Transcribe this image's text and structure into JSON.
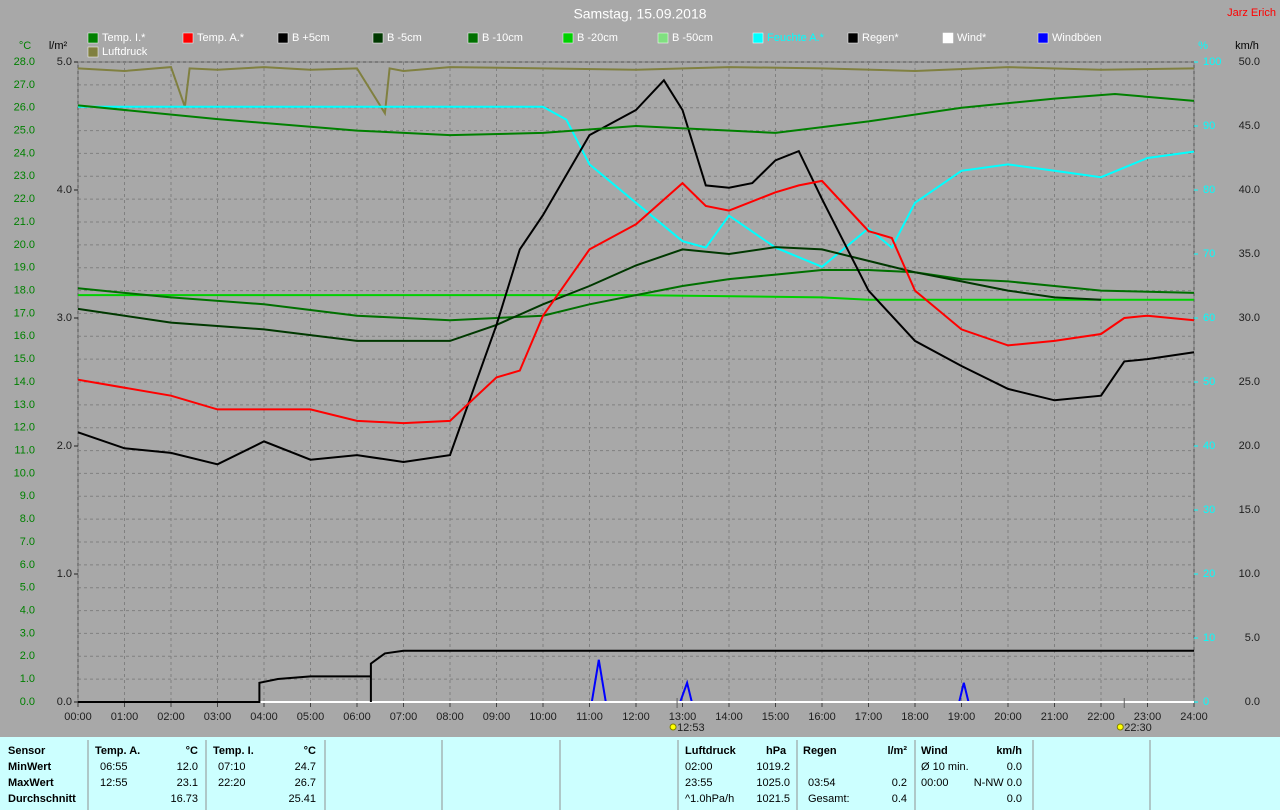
{
  "chart_data": {
    "type": "line",
    "title": "Samstag, 15.09.2018",
    "author": "Jarz Erich",
    "y_label": "°C",
    "y2_label": "l/m²",
    "y3_label": "%",
    "y4_label": "km/h",
    "xlim": [
      0,
      24
    ],
    "xticks": [
      {
        "value": 0,
        "label": "00:00"
      },
      {
        "value": 1,
        "label": "01:00"
      },
      {
        "value": 2,
        "label": "02:00"
      },
      {
        "value": 3,
        "label": "03:00"
      },
      {
        "value": 4,
        "label": "04:00"
      },
      {
        "value": 5,
        "label": "05:00"
      },
      {
        "value": 6,
        "label": "06:00"
      },
      {
        "value": 7,
        "label": "07:00"
      },
      {
        "value": 8,
        "label": "08:00"
      },
      {
        "value": 9,
        "label": "09:00"
      },
      {
        "value": 10,
        "label": "10:00"
      },
      {
        "value": 11,
        "label": "11:00"
      },
      {
        "value": 12,
        "label": "12:00"
      },
      {
        "value": 13,
        "label": "13:00"
      },
      {
        "value": 14,
        "label": "14:00"
      },
      {
        "value": 15,
        "label": "15:00"
      },
      {
        "value": 16,
        "label": "16:00"
      },
      {
        "value": 17,
        "label": "17:00"
      },
      {
        "value": 18,
        "label": "18:00"
      },
      {
        "value": 19,
        "label": "19:00"
      },
      {
        "value": 20,
        "label": "20:00"
      },
      {
        "value": 21,
        "label": "21:00"
      },
      {
        "value": 22,
        "label": "22:00"
      },
      {
        "value": 23,
        "label": "23:00"
      },
      {
        "value": 24,
        "label": "24:00"
      }
    ],
    "ylim": [
      0,
      28
    ],
    "yticks": [
      {
        "value": 0,
        "label": "0.0"
      },
      {
        "value": 1,
        "label": "1.0"
      },
      {
        "value": 2,
        "label": "2.0"
      },
      {
        "value": 3,
        "label": "3.0"
      },
      {
        "value": 4,
        "label": "4.0"
      },
      {
        "value": 5,
        "label": "5.0"
      },
      {
        "value": 6,
        "label": "6.0"
      },
      {
        "value": 7,
        "label": "7.0"
      },
      {
        "value": 8,
        "label": "8.0"
      },
      {
        "value": 9,
        "label": "9.0"
      },
      {
        "value": 10,
        "label": "10.0"
      },
      {
        "value": 11,
        "label": "11.0"
      },
      {
        "value": 12,
        "label": "12.0"
      },
      {
        "value": 13,
        "label": "13.0"
      },
      {
        "value": 14,
        "label": "14.0"
      },
      {
        "value": 15,
        "label": "15.0"
      },
      {
        "value": 16,
        "label": "16.0"
      },
      {
        "value": 17,
        "label": "17.0"
      },
      {
        "value": 18,
        "label": "18.0"
      },
      {
        "value": 19,
        "label": "19.0"
      },
      {
        "value": 20,
        "label": "20.0"
      },
      {
        "value": 21,
        "label": "21.0"
      },
      {
        "value": 22,
        "label": "22.0"
      },
      {
        "value": 23,
        "label": "23.0"
      },
      {
        "value": 24,
        "label": "24.0"
      },
      {
        "value": 25,
        "label": "25.0"
      },
      {
        "value": 26,
        "label": "26.0"
      },
      {
        "value": 27,
        "label": "27.0"
      },
      {
        "value": 28,
        "label": "28.0"
      }
    ],
    "y2lim": [
      0,
      5
    ],
    "y2ticks": [
      {
        "value": 0,
        "label": "0.0"
      },
      {
        "value": 1,
        "label": "1.0"
      },
      {
        "value": 2,
        "label": "2.0"
      },
      {
        "value": 3,
        "label": "3.0"
      },
      {
        "value": 4,
        "label": "4.0"
      },
      {
        "value": 5,
        "label": "5.0"
      }
    ],
    "y3lim": [
      0,
      100
    ],
    "y3ticks": [
      0,
      10,
      20,
      30,
      40,
      50,
      60,
      70,
      80,
      90,
      100
    ],
    "y4lim": [
      0,
      50
    ],
    "y4ticks": [
      {
        "value": 0,
        "label": "0.0"
      },
      {
        "value": 5,
        "label": "5.0"
      },
      {
        "value": 10,
        "label": "10.0"
      },
      {
        "value": 15,
        "label": "15.0"
      },
      {
        "value": 20,
        "label": "20.0"
      },
      {
        "value": 25,
        "label": "25.0"
      },
      {
        "value": 30,
        "label": "30.0"
      },
      {
        "value": 35,
        "label": "35.0"
      },
      {
        "value": 40,
        "label": "40.0"
      },
      {
        "value": 45,
        "label": "45.0"
      },
      {
        "value": 50,
        "label": "50.0"
      }
    ],
    "grid": true,
    "series": [
      {
        "name": "Temp. I.*",
        "color": "#008000",
        "axis": "y",
        "x": [
          0,
          3,
          6,
          8,
          10,
          12,
          15,
          17,
          19,
          21,
          22.3,
          24
        ],
        "values": [
          26.1,
          25.5,
          25.0,
          24.8,
          24.9,
          25.2,
          24.9,
          25.4,
          26.0,
          26.4,
          26.6,
          26.3
        ]
      },
      {
        "name": "Temp. A.*",
        "color": "#ff0000",
        "axis": "y",
        "x": [
          0,
          2,
          3,
          5,
          6,
          7,
          8,
          9,
          9.5,
          10,
          11,
          12,
          13,
          13.5,
          14,
          15,
          15.5,
          16,
          17,
          17.5,
          18,
          19,
          20,
          21,
          22,
          22.5,
          23,
          24
        ],
        "values": [
          14.1,
          13.4,
          12.8,
          12.8,
          12.3,
          12.2,
          12.3,
          14.2,
          14.5,
          16.9,
          19.8,
          20.9,
          22.7,
          21.7,
          21.5,
          22.3,
          22.6,
          22.8,
          20.6,
          20.3,
          18.0,
          16.3,
          15.6,
          15.8,
          16.1,
          16.8,
          16.9,
          16.7
        ]
      },
      {
        "name": "B +5cm",
        "color": "#000000",
        "axis": "y",
        "x": [
          0,
          1,
          2,
          3,
          4,
          5,
          6,
          7,
          8,
          9,
          9.5,
          10,
          11,
          12,
          12.6,
          13,
          13.5,
          14,
          14.5,
          15,
          15.5,
          16,
          17,
          18,
          19,
          20,
          21,
          22,
          22.5,
          23,
          24
        ],
        "values": [
          11.8,
          11.1,
          10.9,
          10.4,
          11.4,
          10.6,
          10.8,
          10.5,
          10.8,
          16.5,
          19.8,
          21.3,
          24.8,
          25.9,
          27.2,
          25.9,
          22.6,
          22.5,
          22.7,
          23.7,
          24.1,
          22.0,
          18.0,
          15.8,
          14.7,
          13.7,
          13.2,
          13.4,
          14.9,
          15.0,
          15.3
        ]
      },
      {
        "name": "B -5cm",
        "color": "#003800",
        "axis": "y",
        "x": [
          0,
          2,
          4,
          6,
          8,
          9,
          10,
          11,
          12,
          13,
          14,
          15,
          16,
          17,
          18,
          19,
          20,
          21,
          22
        ],
        "values": [
          17.2,
          16.6,
          16.3,
          15.8,
          15.8,
          16.5,
          17.4,
          18.2,
          19.1,
          19.8,
          19.6,
          19.9,
          19.8,
          19.3,
          18.8,
          18.4,
          18.0,
          17.7,
          17.6
        ]
      },
      {
        "name": "B -10cm",
        "color": "#007000",
        "axis": "y",
        "x": [
          0,
          2,
          4,
          6,
          8,
          10,
          11,
          12,
          13,
          14,
          15,
          16,
          17,
          18,
          19,
          20,
          21,
          22,
          24
        ],
        "values": [
          18.1,
          17.7,
          17.4,
          16.9,
          16.7,
          16.9,
          17.4,
          17.8,
          18.2,
          18.5,
          18.7,
          18.9,
          18.9,
          18.8,
          18.5,
          18.4,
          18.2,
          18.0,
          17.9
        ]
      },
      {
        "name": "B -20cm",
        "color": "#00d000",
        "axis": "y",
        "x": [
          0,
          8,
          12,
          16,
          17,
          24
        ],
        "values": [
          17.8,
          17.8,
          17.8,
          17.7,
          17.6,
          17.6
        ]
      },
      {
        "name": "B -50cm",
        "color": "#80e080",
        "axis": "y",
        "x": [],
        "values": []
      },
      {
        "name": "Feuchte A.*",
        "color": "#00ffff",
        "axis": "y3",
        "x": [
          0,
          10,
          10.5,
          11,
          12,
          13,
          13.5,
          14,
          15,
          16,
          17,
          17.5,
          18,
          19,
          20,
          21,
          22,
          23,
          24
        ],
        "values": [
          93,
          93,
          91,
          84,
          78,
          72,
          71,
          76,
          71,
          68,
          74,
          71,
          78,
          83,
          84,
          83,
          82,
          85,
          86
        ]
      },
      {
        "name": "Regen*",
        "color": "#000000",
        "axis": "y2",
        "x": [
          0,
          3.9,
          3.9,
          4.3,
          5,
          6.3,
          6.3,
          6.3,
          6.6,
          7,
          24
        ],
        "values": [
          0,
          0,
          0.15,
          0.18,
          0.2,
          0.2,
          0,
          0.3,
          0.38,
          0.4,
          0.4
        ]
      },
      {
        "name": "Wind*",
        "color": "#ffffff",
        "axis": "y4",
        "x": [
          0,
          24
        ],
        "values": [
          0,
          0
        ]
      },
      {
        "name": "Windböen",
        "color": "#0000ff",
        "axis": "y4",
        "x": [
          0,
          11.05,
          11.2,
          11.35,
          12.95,
          13.1,
          13.2,
          18.95,
          19.05,
          19.15,
          24
        ],
        "values": [
          0,
          0,
          3.3,
          0,
          0,
          1.5,
          0,
          0,
          1.5,
          0,
          0
        ]
      },
      {
        "name": "Luftdruck",
        "color": "#808040",
        "axis": "y2",
        "x": [
          0,
          1,
          2,
          2.3,
          2.4,
          3,
          4,
          5,
          6,
          6.6,
          6.7,
          7,
          8,
          10,
          12,
          14,
          16,
          18,
          20,
          22,
          24
        ],
        "values": [
          4.95,
          4.93,
          4.96,
          4.65,
          4.95,
          4.94,
          4.96,
          4.94,
          4.95,
          4.6,
          4.95,
          4.93,
          4.96,
          4.95,
          4.94,
          4.96,
          4.95,
          4.93,
          4.96,
          4.94,
          4.95
        ]
      }
    ],
    "annotations": [
      "12:53",
      "22:30"
    ]
  },
  "table": {
    "rows": [
      [
        "Sensor",
        "Temp. A.",
        "°C",
        "Temp. I.",
        "°C",
        "Luftdruck",
        "hPa",
        "Regen",
        "l/m²",
        "Wind",
        "km/h"
      ],
      [
        "MinWert",
        "06:55",
        "12.0",
        "07:10",
        "24.7",
        "02:00",
        "1019.2",
        null,
        null,
        "Ø 10 min.",
        "0.0"
      ],
      [
        "MaxWert",
        "12:55",
        "23.1",
        "22:20",
        "26.7",
        "23:55",
        "1025.0",
        "03:54",
        "0.2",
        "00:00",
        "N-NW 0.0"
      ],
      [
        "Durchschnitt",
        null,
        "16.73",
        null,
        "25.41",
        "^1.0hPa/h",
        "1021.5",
        "Gesamt:",
        "0.4",
        null,
        "0.0"
      ]
    ]
  }
}
